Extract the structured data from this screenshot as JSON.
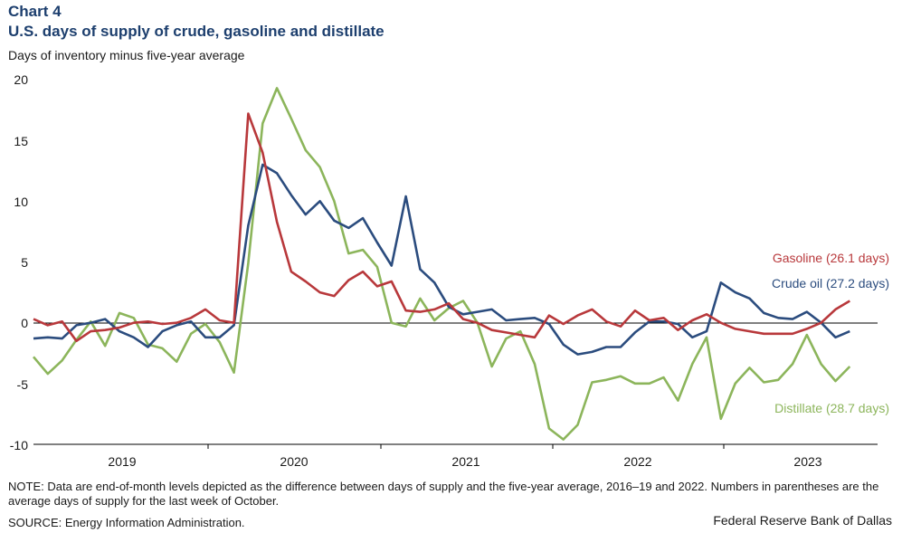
{
  "header": {
    "chart_number": "Chart 4",
    "title": "U.S. days of supply of crude, gasoline and distillate",
    "ylabel": "Days of inventory  minus five-year average"
  },
  "footer": {
    "note": "NOTE: Data are end-of-month levels depicted as the difference between days of supply and the five-year average, 2016–19 and 2022. Numbers in parentheses are the average days of supply for the last week of October.",
    "source": "SOURCE: Energy Information Administration.",
    "credit": "Federal Reserve Bank of Dallas"
  },
  "chart_data": {
    "type": "line",
    "x": [
      "2018-07",
      "2018-08",
      "2018-09",
      "2018-10",
      "2018-11",
      "2018-12",
      "2019-01",
      "2019-02",
      "2019-03",
      "2019-04",
      "2019-05",
      "2019-06",
      "2019-07",
      "2019-08",
      "2019-09",
      "2019-10",
      "2019-11",
      "2019-12",
      "2020-01",
      "2020-02",
      "2020-03",
      "2020-04",
      "2020-05",
      "2020-06",
      "2020-07",
      "2020-08",
      "2020-09",
      "2020-10",
      "2020-11",
      "2020-12",
      "2021-01",
      "2021-02",
      "2021-03",
      "2021-04",
      "2021-05",
      "2021-06",
      "2021-07",
      "2021-08",
      "2021-09",
      "2021-10",
      "2021-11",
      "2021-12",
      "2022-01",
      "2022-02",
      "2022-03",
      "2022-04",
      "2022-05",
      "2022-06",
      "2022-07",
      "2022-08",
      "2022-09",
      "2022-10",
      "2022-11",
      "2022-12",
      "2023-01",
      "2023-02",
      "2023-03",
      "2023-04"
    ],
    "series": [
      {
        "name": "Crude oil (27.2 days)",
        "color": "#2b4c7e",
        "values": [
          -1.3,
          -1.2,
          -1.3,
          -0.2,
          0.0,
          0.3,
          -0.7,
          -1.2,
          -2.0,
          -0.7,
          -0.2,
          0.1,
          -1.2,
          -1.2,
          -0.2,
          8.0,
          13.0,
          12.3,
          10.5,
          8.9,
          10.0,
          8.4,
          7.8,
          8.6,
          6.6,
          4.7,
          10.4,
          4.4,
          3.3,
          1.3,
          0.7,
          0.9,
          1.1,
          0.2,
          0.3,
          0.4,
          -0.1,
          -1.8,
          -2.6,
          -2.4,
          -2.0,
          -2.0,
          -0.8,
          0.1,
          0.1,
          -0.1,
          -1.2,
          -0.7,
          3.3,
          2.5,
          2.0,
          0.8,
          0.4,
          0.3,
          0.9,
          0.0,
          -1.2,
          -0.7
        ]
      },
      {
        "name": "Gasoline (26.1 days)",
        "color": "#b8383b",
        "values": [
          0.3,
          -0.2,
          0.1,
          -1.5,
          -0.7,
          -0.6,
          -0.4,
          0.0,
          0.1,
          -0.1,
          0.0,
          0.4,
          1.1,
          0.2,
          0.0,
          17.2,
          14.0,
          8.3,
          4.2,
          3.4,
          2.5,
          2.2,
          3.5,
          4.2,
          3.0,
          3.4,
          1.0,
          0.9,
          1.1,
          1.6,
          0.3,
          0.0,
          -0.6,
          -0.8,
          -1.0,
          -1.2,
          0.6,
          -0.1,
          0.6,
          1.1,
          0.1,
          -0.3,
          1.0,
          0.2,
          0.4,
          -0.6,
          0.2,
          0.7,
          0.0,
          -0.5,
          -0.7,
          -0.9,
          -0.9,
          -0.9,
          -0.5,
          0.0,
          1.1,
          1.8
        ]
      },
      {
        "name": "Distillate (28.7 days)",
        "color": "#8cb55b",
        "values": [
          -2.8,
          -4.2,
          -3.1,
          -1.4,
          0.1,
          -1.9,
          0.8,
          0.4,
          -1.8,
          -2.1,
          -3.2,
          -0.9,
          -0.1,
          -1.6,
          -4.1,
          4.9,
          16.4,
          19.3,
          16.8,
          14.2,
          12.8,
          10.0,
          5.7,
          6.0,
          4.6,
          0.0,
          -0.3,
          2.0,
          0.2,
          1.2,
          1.8,
          0.0,
          -3.6,
          -1.3,
          -0.7,
          -3.4,
          -8.7,
          -9.6,
          -8.4,
          -4.9,
          -4.7,
          -4.4,
          -5.0,
          -5.0,
          -4.5,
          -6.4,
          -3.4,
          -1.2,
          -7.9,
          -5.0,
          -3.7,
          -4.9,
          -4.7,
          -3.4,
          -1.0,
          -3.4,
          -4.8,
          -3.6
        ]
      }
    ],
    "ylim": [
      -10,
      20
    ],
    "yticks": [
      "20",
      "15",
      "10",
      "5",
      "0",
      "-5",
      "-10"
    ],
    "xtick_labels": [
      "2019",
      "2020",
      "2021",
      "2022",
      "2023"
    ],
    "grid": false
  }
}
